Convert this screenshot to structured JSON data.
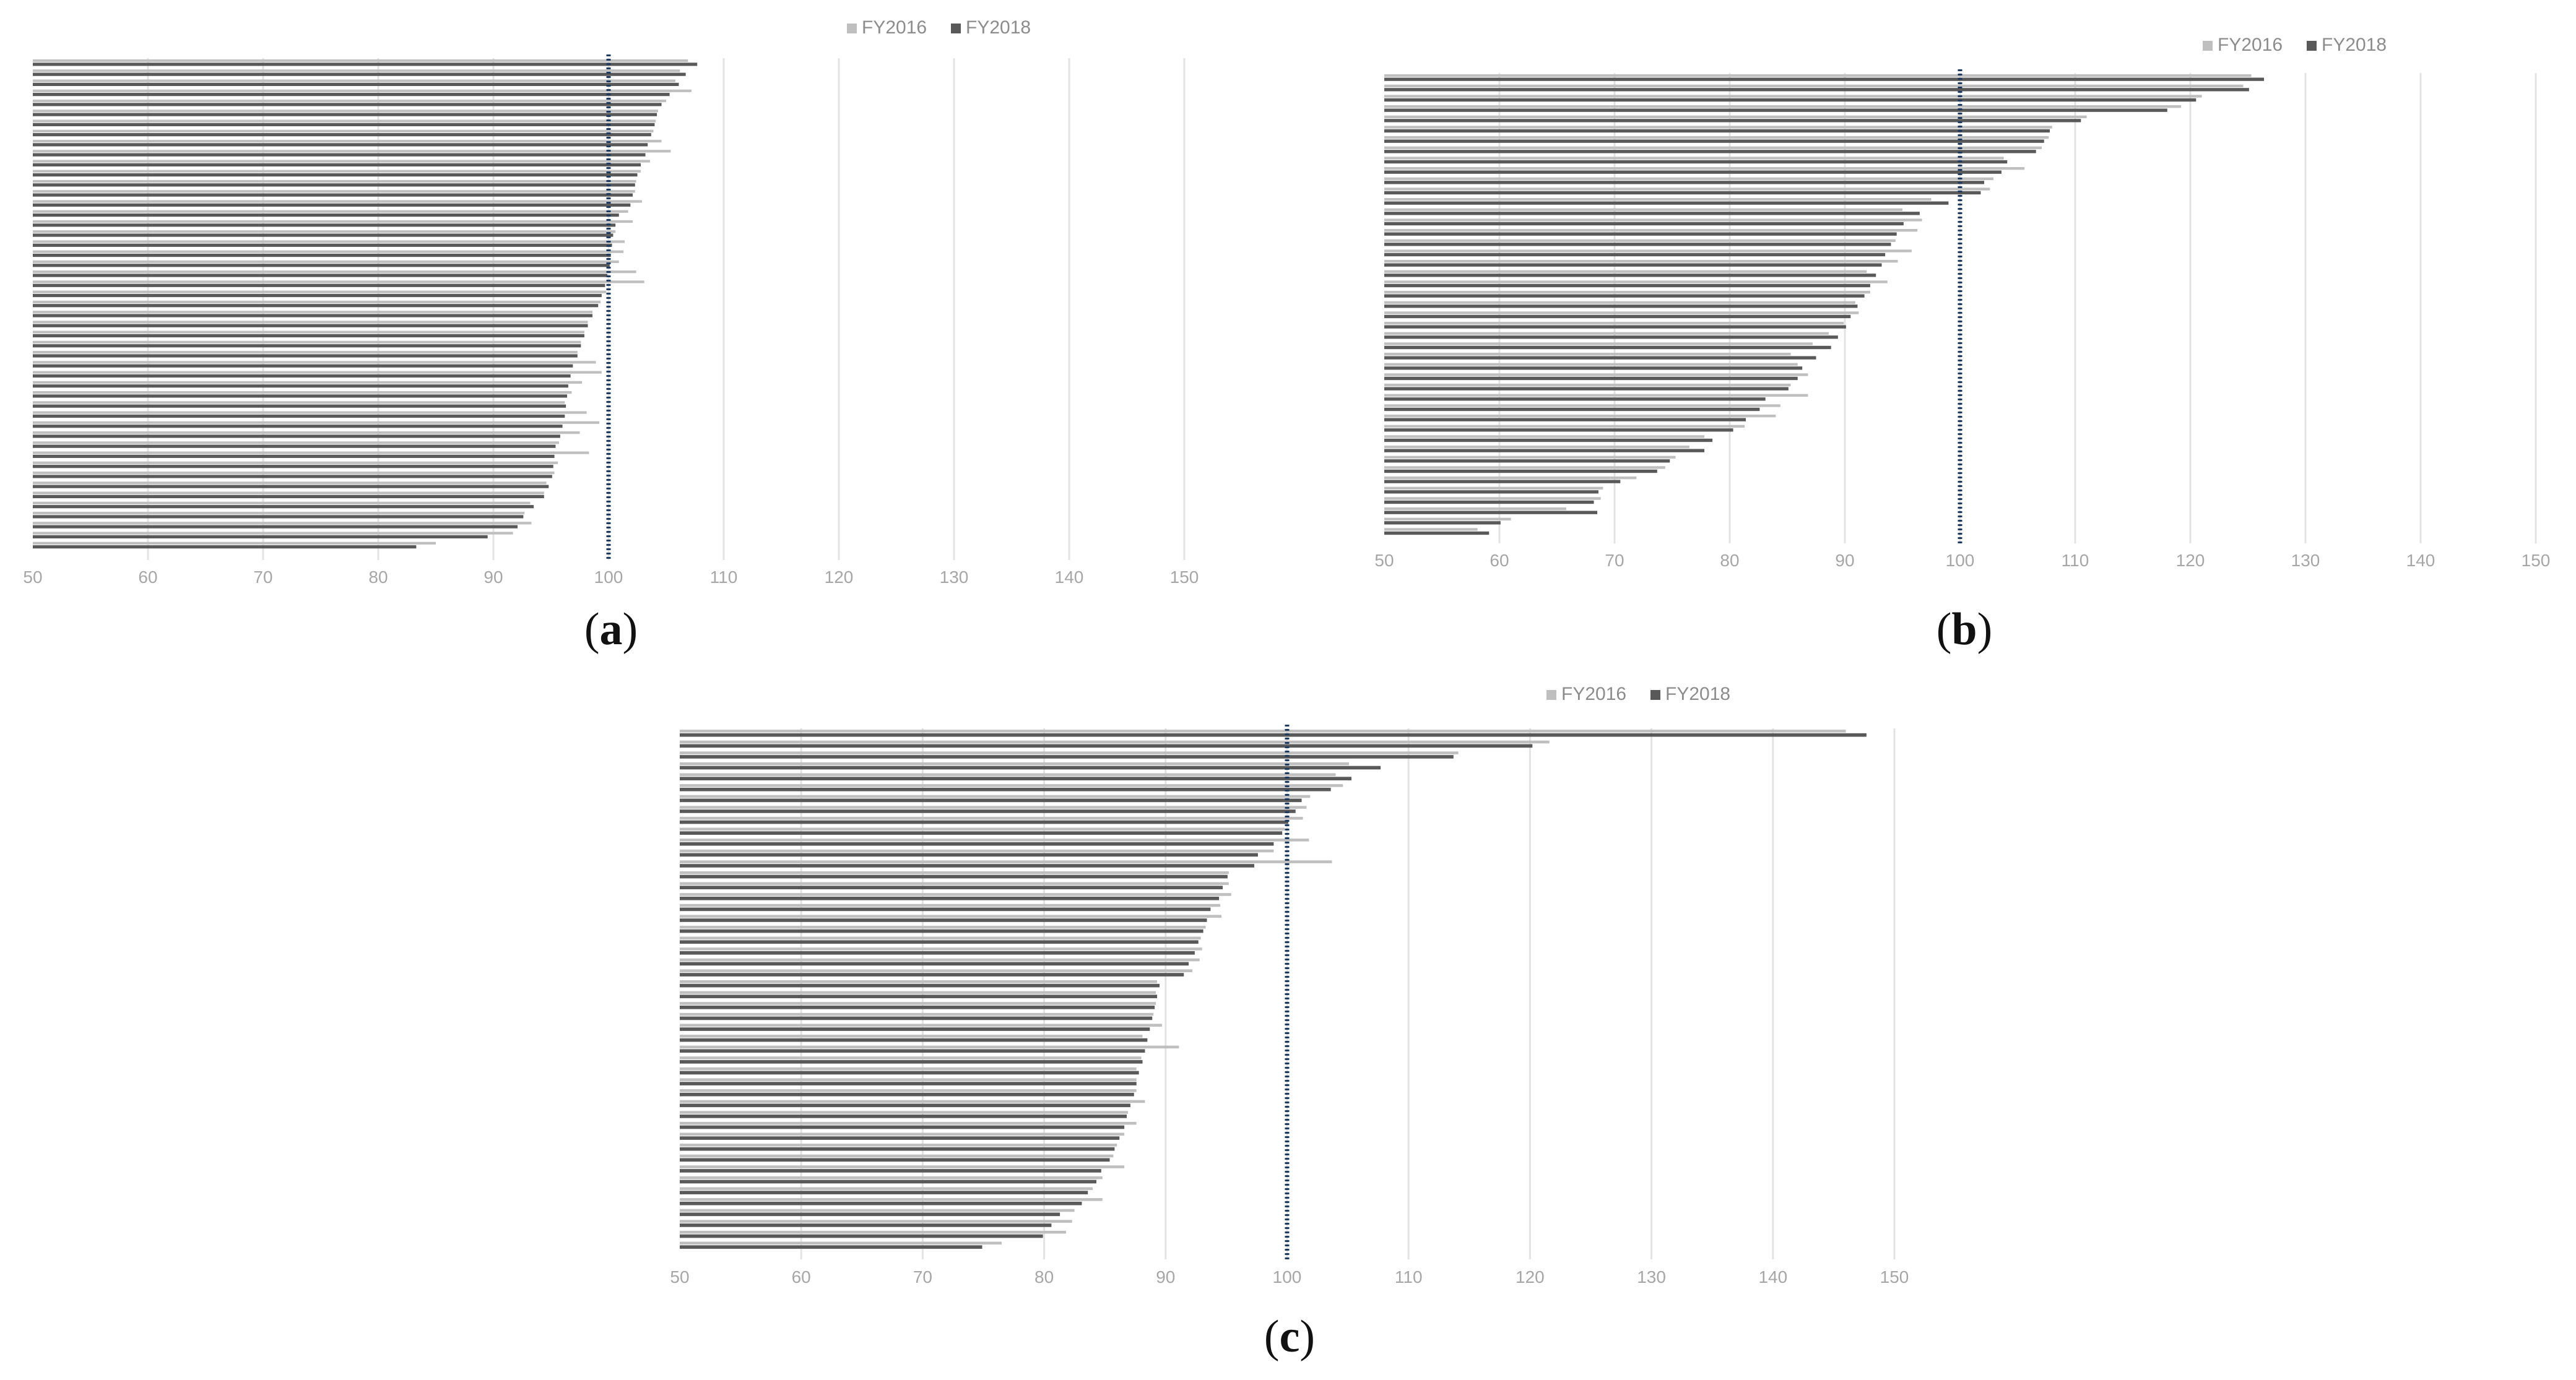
{
  "colors": {
    "fy2016": "#bfbfbf",
    "fy2018": "#595959",
    "grid": "#e3e3e3",
    "reference_line": "#1f3a5f",
    "axis_text": "#a6a6a6",
    "legend_text": "#8c8c8c"
  },
  "panels": [
    {
      "open": "(",
      "letter": "a",
      "close": ")"
    },
    {
      "open": "(",
      "letter": "b",
      "close": ")"
    },
    {
      "open": "(",
      "letter": "c",
      "close": ")"
    }
  ],
  "chart_data": [
    {
      "type": "bar",
      "orientation": "horizontal",
      "title": "",
      "xlabel": "",
      "ylabel": "",
      "xlim": [
        50,
        160
      ],
      "xticks": [
        "50",
        "60",
        "70",
        "80",
        "90",
        "100",
        "110",
        "120",
        "130",
        "140",
        "150"
      ],
      "grid": "vertical",
      "legend_position": "top-center",
      "reference_line": 100,
      "series": [
        {
          "name": "FY2016",
          "values": [
            106.9,
            106.2,
            105.8,
            107.2,
            105.0,
            104.3,
            104.1,
            103.9,
            104.6,
            105.4,
            103.6,
            102.8,
            102.4,
            102.3,
            102.9,
            101.7,
            102.1,
            100.6,
            101.4,
            101.3,
            100.9,
            102.4,
            103.1,
            99.8,
            99.3,
            98.6,
            98.2,
            97.9,
            97.6,
            97.3,
            98.9,
            99.4,
            97.7,
            96.8,
            96.2,
            98.1,
            99.2,
            97.5,
            95.7,
            98.3,
            95.6,
            95.3,
            94.6,
            94.4,
            93.2,
            92.7,
            93.3,
            91.7,
            85.0
          ]
        },
        {
          "name": "FY2018",
          "values": [
            107.7,
            106.7,
            106.1,
            105.3,
            104.6,
            104.2,
            104.0,
            103.7,
            103.4,
            103.2,
            102.8,
            102.5,
            102.3,
            102.1,
            101.9,
            100.9,
            100.6,
            100.4,
            100.3,
            100.2,
            100.1,
            99.9,
            99.7,
            99.4,
            99.1,
            98.6,
            98.2,
            97.9,
            97.6,
            97.3,
            96.9,
            96.7,
            96.5,
            96.4,
            96.3,
            96.2,
            96.0,
            95.8,
            95.4,
            95.3,
            95.2,
            95.1,
            94.8,
            94.4,
            93.5,
            92.6,
            92.1,
            89.5,
            83.3
          ]
        }
      ]
    },
    {
      "type": "bar",
      "orientation": "horizontal",
      "title": "",
      "xlabel": "",
      "ylabel": "",
      "xlim": [
        50,
        155
      ],
      "xticks": [
        "50",
        "60",
        "70",
        "80",
        "90",
        "100",
        "110",
        "120",
        "130",
        "140",
        "150"
      ],
      "grid": "vertical",
      "legend_position": "top-right",
      "reference_line": 100,
      "series": [
        {
          "name": "FY2016",
          "values": [
            125.3,
            124.6,
            121.0,
            119.2,
            111.0,
            108.0,
            107.7,
            107.1,
            103.8,
            105.6,
            102.9,
            102.6,
            97.5,
            95.0,
            96.7,
            96.3,
            94.4,
            95.8,
            94.6,
            91.9,
            93.7,
            92.2,
            90.9,
            91.2,
            89.9,
            88.6,
            87.2,
            85.3,
            85.9,
            86.8,
            85.3,
            86.8,
            84.4,
            84.0,
            81.3,
            77.8,
            76.5,
            75.3,
            74.4,
            71.9,
            69.0,
            68.8,
            65.8,
            61.0,
            58.1
          ]
        },
        {
          "name": "FY2018",
          "values": [
            126.4,
            125.1,
            120.5,
            118.0,
            110.5,
            107.8,
            107.3,
            106.6,
            104.1,
            103.6,
            102.1,
            101.8,
            99.0,
            96.5,
            95.1,
            94.5,
            94.0,
            93.5,
            93.2,
            92.7,
            92.2,
            91.7,
            91.1,
            90.5,
            90.1,
            89.4,
            88.8,
            87.5,
            86.3,
            85.9,
            85.1,
            83.1,
            82.6,
            81.4,
            80.3,
            78.5,
            77.8,
            74.8,
            73.7,
            70.5,
            68.6,
            68.2,
            68.5,
            60.1,
            59.1
          ]
        }
      ]
    },
    {
      "type": "bar",
      "orientation": "horizontal",
      "title": "",
      "xlabel": "",
      "ylabel": "",
      "xlim": [
        50,
        155
      ],
      "xticks": [
        "50",
        "60",
        "70",
        "80",
        "90",
        "100",
        "110",
        "120",
        "130",
        "140",
        "150"
      ],
      "grid": "vertical",
      "legend_position": "top-right",
      "reference_line": 100,
      "series": [
        {
          "name": "FY2016",
          "values": [
            146.0,
            121.6,
            114.1,
            105.1,
            104.0,
            104.6,
            101.9,
            101.6,
            101.3,
            99.8,
            101.8,
            98.9,
            103.7,
            95.2,
            95.2,
            95.4,
            94.5,
            94.6,
            93.3,
            92.9,
            93.0,
            92.8,
            92.2,
            89.3,
            89.2,
            89.2,
            89.0,
            89.7,
            88.1,
            91.1,
            88.0,
            87.6,
            87.6,
            87.6,
            88.3,
            86.9,
            87.6,
            86.6,
            86.0,
            85.7,
            86.6,
            84.8,
            84.0,
            84.8,
            82.5,
            82.3,
            81.8,
            76.5
          ]
        },
        {
          "name": "FY2018",
          "values": [
            147.7,
            120.2,
            113.7,
            107.7,
            105.3,
            103.6,
            101.2,
            100.7,
            100.1,
            99.6,
            98.9,
            97.6,
            97.3,
            95.1,
            94.7,
            94.4,
            93.7,
            93.4,
            93.1,
            92.7,
            92.4,
            91.9,
            91.5,
            89.5,
            89.3,
            89.1,
            88.9,
            88.7,
            88.5,
            88.3,
            88.1,
            87.8,
            87.6,
            87.4,
            87.1,
            86.8,
            86.6,
            86.2,
            85.8,
            85.4,
            84.7,
            84.3,
            83.6,
            83.1,
            81.3,
            80.6,
            79.9,
            74.9
          ]
        }
      ]
    }
  ]
}
